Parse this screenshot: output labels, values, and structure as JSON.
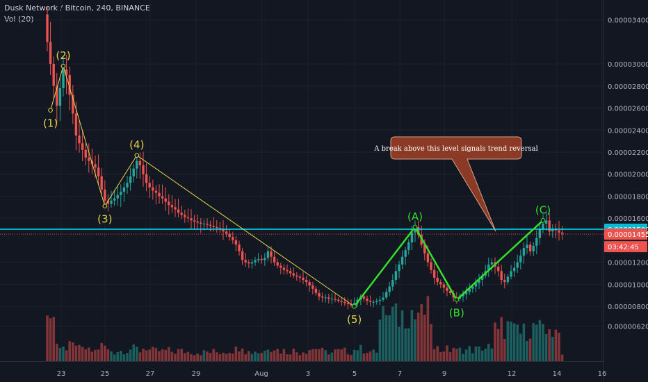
{
  "header": {
    "title": "Dusk Network / Bitcoin, 240, BINANCE",
    "volume_label": "Vol (20)"
  },
  "colors": {
    "up": "#26a69a",
    "down": "#ef5350",
    "wave_impulse": "#e3d54a",
    "wave_correction": "#33e02b",
    "level": "#00e5ff",
    "price_line": "#ef5350",
    "note_fill": "#8b3a26"
  },
  "chart_data": {
    "type": "candlestick",
    "x_ticks": [
      "23",
      "25",
      "27",
      "29",
      "Aug",
      "3",
      "5",
      "7",
      "9",
      "12",
      "14",
      "16"
    ],
    "y_ticks": [
      "0.00003400",
      "0.00003000",
      "0.00002800",
      "0.00002600",
      "0.00002400",
      "0.00002200",
      "0.00002000",
      "0.00001800",
      "0.00001600",
      "0.00001200",
      "0.00001000",
      "0.00000800",
      "0.00000620"
    ],
    "ylim": [
      5.8e-06,
      3.47e-05
    ],
    "level_value": 1.5e-05,
    "level_label": "0.00001500",
    "last_price": 1.455e-05,
    "last_price_label": "0.00001455",
    "countdown": "03:42:45",
    "closes": [
      3.2e-05,
      3e-05,
      2.8e-05,
      2.62e-05,
      2.78e-05,
      2.95e-05,
      2.9e-05,
      2.72e-05,
      2.55e-05,
      2.35e-05,
      2.28e-05,
      2.22e-05,
      2.15e-05,
      2.12e-05,
      2.09e-05,
      2.06e-05,
      1.98e-05,
      1.86e-05,
      1.76e-05,
      1.73e-05,
      1.76e-05,
      1.78e-05,
      1.81e-05,
      1.84e-05,
      1.88e-05,
      1.92e-05,
      1.98e-05,
      2.05e-05,
      2.12e-05,
      2.08e-05,
      2e-05,
      1.92e-05,
      1.88e-05,
      1.85e-05,
      1.83e-05,
      1.8e-05,
      1.78e-05,
      1.75e-05,
      1.72e-05,
      1.7e-05,
      1.68e-05,
      1.65e-05,
      1.63e-05,
      1.61e-05,
      1.6e-05,
      1.58e-05,
      1.57e-05,
      1.56e-05,
      1.55e-05,
      1.55e-05,
      1.54e-05,
      1.53e-05,
      1.52e-05,
      1.51e-05,
      1.5e-05,
      1.48e-05,
      1.46e-05,
      1.43e-05,
      1.4e-05,
      1.36e-05,
      1.3e-05,
      1.22e-05,
      1.2e-05,
      1.19e-05,
      1.2e-05,
      1.22e-05,
      1.23e-05,
      1.22e-05,
      1.24e-05,
      1.3e-05,
      1.25e-05,
      1.2e-05,
      1.17e-05,
      1.15e-05,
      1.13e-05,
      1.12e-05,
      1.1e-05,
      1.08e-05,
      1.07e-05,
      1.06e-05,
      1.04e-05,
      1.02e-05,
      9.9e-06,
      9.6e-06,
      9.2e-06,
      8.9e-06,
      8.8e-06,
      8.8e-06,
      8.7e-06,
      8.7e-06,
      8.6e-06,
      8.5e-06,
      8.4e-06,
      8.3e-06,
      8.2e-06,
      8.1e-06,
      8.3e-06,
      8.6e-06,
      8.9e-06,
      8.7e-06,
      8.5e-06,
      8.4e-06,
      8.4e-06,
      8.5e-06,
      8.6e-06,
      8.8e-06,
      9.3e-06,
      9.8e-06,
      1.04e-05,
      1.12e-05,
      1.18e-05,
      1.25e-05,
      1.31e-05,
      1.38e-05,
      1.47e-05,
      1.52e-05,
      1.45e-05,
      1.36e-05,
      1.28e-05,
      1.2e-05,
      1.13e-05,
      1.06e-05,
      1.02e-05,
      1e-05,
      9.7e-06,
      9.4e-06,
      9.2e-06,
      8.8e-06,
      8.7e-06,
      8.9e-06,
      9.1e-06,
      9.3e-06,
      9.6e-06,
      9.8e-06,
      1.01e-05,
      1.04e-05,
      1.08e-05,
      1.12e-05,
      1.18e-05,
      1.2e-05,
      1.16e-05,
      1.12e-05,
      1.04e-05,
      1.02e-05,
      1.07e-05,
      1.12e-05,
      1.15e-05,
      1.2e-05,
      1.26e-05,
      1.33e-05,
      1.36e-05,
      1.3e-05,
      1.35e-05,
      1.42e-05,
      1.5e-05,
      1.55e-05,
      1.58e-05,
      1.48e-05,
      1.5e-05,
      1.49e-05,
      1.47e-05,
      1.46e-05
    ]
  },
  "waves": {
    "impulse": [
      {
        "label": "(1)",
        "index": 1,
        "value": 2.58e-05,
        "position": "below"
      },
      {
        "label": "(2)",
        "index": 5,
        "value": 2.98e-05,
        "position": "above"
      },
      {
        "label": "(3)",
        "index": 18,
        "value": 1.71e-05,
        "position": "below"
      },
      {
        "label": "(4)",
        "index": 28,
        "value": 2.17e-05,
        "position": "above"
      },
      {
        "label": "(5)",
        "index": 96,
        "value": 8e-06,
        "position": "below"
      }
    ],
    "correction": [
      {
        "label": "",
        "index": 96,
        "value": 8e-06,
        "position": "none"
      },
      {
        "label": "(A)",
        "index": 115,
        "value": 1.52e-05,
        "position": "above"
      },
      {
        "label": "(B)",
        "index": 128,
        "value": 8.6e-06,
        "position": "below"
      },
      {
        "label": "(C)",
        "index": 155,
        "value": 1.58e-05,
        "position": "above"
      }
    ]
  },
  "annotation": {
    "text": "A break above this level signals trend reversal"
  }
}
